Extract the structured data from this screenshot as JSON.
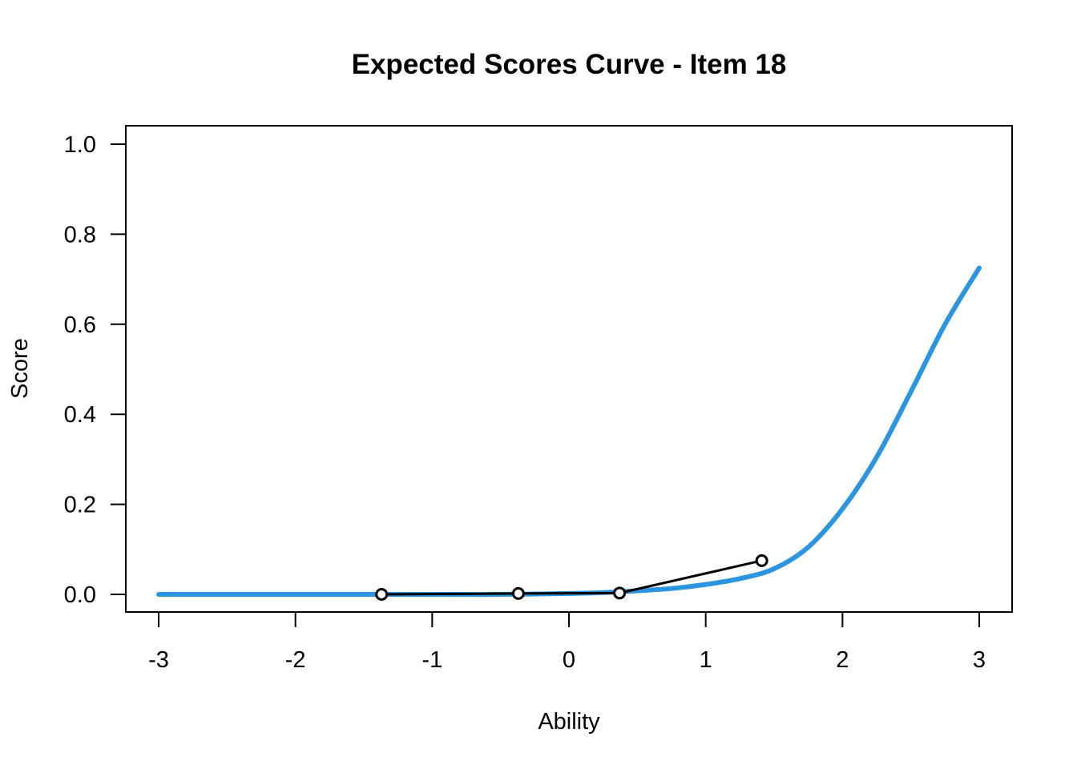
{
  "chart_data": {
    "type": "line",
    "title": "Expected Scores Curve - Item  18",
    "xlabel": "Ability",
    "ylabel": "Score",
    "xlim": [
      -3,
      3
    ],
    "ylim": [
      0,
      1
    ],
    "x_ticks": [
      -3,
      -2,
      -1,
      0,
      1,
      2,
      3
    ],
    "x_tick_labels": [
      "-3",
      "-2",
      "-1",
      "0",
      "1",
      "2",
      "3"
    ],
    "y_ticks": [
      0,
      0.2,
      0.4,
      0.6,
      0.8,
      1.0
    ],
    "y_tick_labels": [
      "0.0",
      "0.2",
      "0.4",
      "0.6",
      "0.8",
      "1.0"
    ],
    "grid": false,
    "series": [
      {
        "kind": "curve",
        "color": "#2b95e0",
        "x": [
          -3.0,
          -2.5,
          -2.0,
          -1.5,
          -1.0,
          -0.5,
          0.0,
          0.25,
          0.5,
          0.75,
          1.0,
          1.25,
          1.5,
          1.75,
          2.0,
          2.25,
          2.5,
          2.75,
          3.0
        ],
        "y": [
          0.0,
          0.0,
          0.0,
          0.0,
          0.0,
          0.0,
          0.002,
          0.004,
          0.008,
          0.013,
          0.022,
          0.035,
          0.057,
          0.105,
          0.19,
          0.305,
          0.45,
          0.6,
          0.725
        ]
      },
      {
        "kind": "observed",
        "color": "#000000",
        "x": [
          -1.37,
          -0.37,
          0.37,
          1.41
        ],
        "y": [
          0.0,
          0.002,
          0.003,
          0.075
        ]
      }
    ]
  }
}
